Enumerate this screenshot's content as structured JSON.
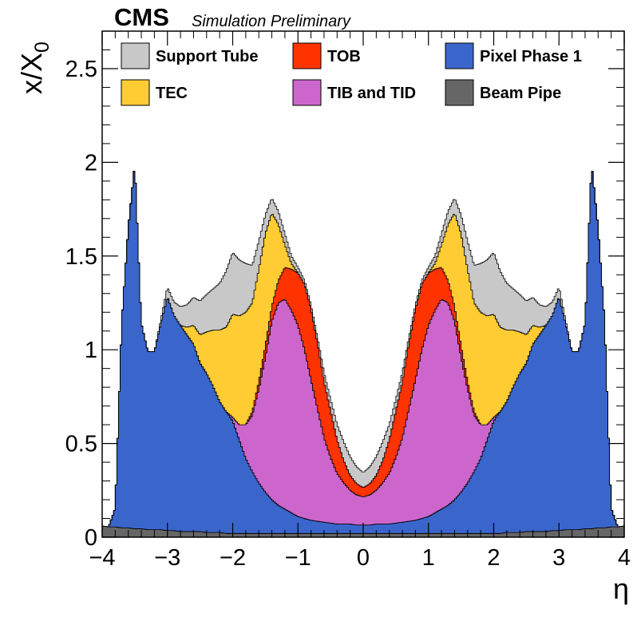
{
  "header": {
    "experiment": "CMS",
    "status": "Simulation Preliminary"
  },
  "chart_data": {
    "type": "area",
    "stacked": true,
    "xlabel": "η",
    "ylabel_main": "x/X",
    "ylabel_sub": "0",
    "xlim": [
      -4,
      4
    ],
    "ylim": [
      0,
      2.7
    ],
    "xticks": [
      "−4",
      "−3",
      "−2",
      "−1",
      "0",
      "1",
      "2",
      "3",
      "4"
    ],
    "yticks": [
      "0",
      "0.5",
      "1",
      "1.5",
      "2",
      "2.5"
    ],
    "legend_position": "top",
    "legend": [
      {
        "name": "Support Tube",
        "color": "#c8c8c8"
      },
      {
        "name": "TOB",
        "color": "#ff3300"
      },
      {
        "name": "Pixel Phase 1",
        "color": "#3a66cc"
      },
      {
        "name": "TEC",
        "color": "#ffcc33"
      },
      {
        "name": "TIB and TID",
        "color": "#cc66cc"
      },
      {
        "name": "Beam Pipe",
        "color": "#666666"
      }
    ],
    "abs_eta": [
      0.0,
      0.1,
      0.2,
      0.3,
      0.4,
      0.5,
      0.6,
      0.7,
      0.8,
      0.9,
      1.0,
      1.1,
      1.2,
      1.3,
      1.4,
      1.5,
      1.6,
      1.7,
      1.8,
      1.9,
      2.0,
      2.1,
      2.2,
      2.3,
      2.4,
      2.5,
      2.6,
      2.7,
      2.8,
      2.9,
      3.0,
      3.1,
      3.2,
      3.3,
      3.4,
      3.5,
      3.6,
      3.7,
      3.8,
      3.9,
      4.0
    ],
    "series": [
      {
        "name": "Beam Pipe",
        "color": "#666666",
        "values": [
          0.02,
          0.02,
          0.02,
          0.02,
          0.02,
          0.02,
          0.02,
          0.02,
          0.02,
          0.02,
          0.02,
          0.02,
          0.02,
          0.02,
          0.02,
          0.02,
          0.02,
          0.02,
          0.02,
          0.02,
          0.02,
          0.02,
          0.025,
          0.025,
          0.025,
          0.03,
          0.03,
          0.03,
          0.03,
          0.035,
          0.035,
          0.04,
          0.04,
          0.04,
          0.045,
          0.045,
          0.05,
          0.05,
          0.055,
          0.055,
          0.06
        ]
      },
      {
        "name": "Pixel Phase 1",
        "color": "#3a66cc",
        "values": [
          0.045,
          0.045,
          0.05,
          0.05,
          0.05,
          0.055,
          0.06,
          0.065,
          0.07,
          0.08,
          0.09,
          0.11,
          0.13,
          0.15,
          0.18,
          0.22,
          0.27,
          0.33,
          0.4,
          0.5,
          0.6,
          0.65,
          0.7,
          0.78,
          0.85,
          0.9,
          1.0,
          1.05,
          1.1,
          1.15,
          1.25,
          1.1,
          0.95,
          0.95,
          1.1,
          1.95,
          1.6,
          1.1,
          0.1,
          0.0,
          0.0
        ]
      },
      {
        "name": "TIB and TID",
        "color": "#cc66cc",
        "values": [
          0.15,
          0.16,
          0.18,
          0.22,
          0.27,
          0.35,
          0.45,
          0.6,
          0.75,
          0.9,
          1.02,
          1.08,
          1.12,
          1.08,
          0.95,
          0.72,
          0.5,
          0.3,
          0.18,
          0.08,
          0.02,
          0.0,
          0.0,
          0.0,
          0.0,
          0.0,
          0.0,
          0.0,
          0.0,
          0.0,
          0.0,
          0.0,
          0.0,
          0.0,
          0.0,
          0.0,
          0.0,
          0.0,
          0.0,
          0.0,
          0.0
        ]
      },
      {
        "name": "TOB",
        "color": "#ff3300",
        "values": [
          0.05,
          0.06,
          0.08,
          0.12,
          0.18,
          0.25,
          0.3,
          0.35,
          0.38,
          0.35,
          0.28,
          0.22,
          0.17,
          0.12,
          0.08,
          0.06,
          0.04,
          0.02,
          0.0,
          0.0,
          0.0,
          0.0,
          0.0,
          0.0,
          0.0,
          0.0,
          0.0,
          0.0,
          0.0,
          0.0,
          0.0,
          0.0,
          0.0,
          0.0,
          0.0,
          0.0,
          0.0,
          0.0,
          0.0,
          0.0,
          0.0
        ]
      },
      {
        "name": "TEC",
        "color": "#ffcc33",
        "values": [
          0.0,
          0.0,
          0.0,
          0.0,
          0.0,
          0.0,
          0.0,
          0.0,
          0.0,
          0.0,
          0.0,
          0.03,
          0.12,
          0.3,
          0.5,
          0.6,
          0.6,
          0.58,
          0.6,
          0.58,
          0.55,
          0.45,
          0.38,
          0.3,
          0.22,
          0.15,
          0.1,
          0.04,
          0.0,
          0.0,
          0.0,
          0.0,
          0.0,
          0.0,
          0.0,
          0.0,
          0.0,
          0.0,
          0.0,
          0.0,
          0.0
        ]
      },
      {
        "name": "Support Tube",
        "color": "#c8c8c8",
        "values": [
          0.08,
          0.09,
          0.1,
          0.1,
          0.08,
          0.06,
          0.05,
          0.03,
          0.02,
          0.02,
          0.03,
          0.04,
          0.06,
          0.07,
          0.08,
          0.1,
          0.15,
          0.2,
          0.26,
          0.3,
          0.33,
          0.3,
          0.25,
          0.22,
          0.2,
          0.18,
          0.15,
          0.12,
          0.1,
          0.07,
          0.05,
          0.02,
          0.0,
          0.0,
          0.0,
          0.0,
          0.0,
          0.0,
          0.0,
          0.0,
          0.0
        ]
      }
    ]
  }
}
